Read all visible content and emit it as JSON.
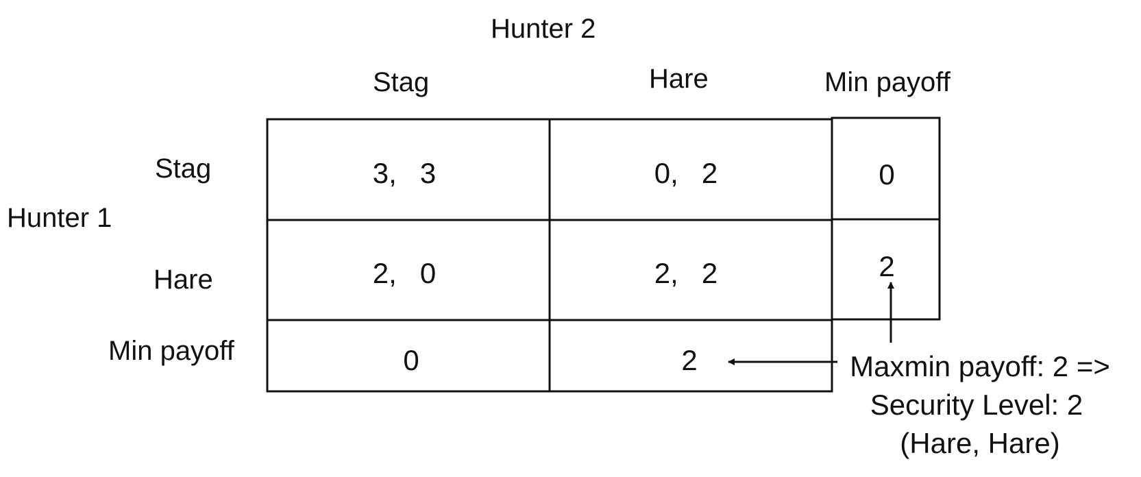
{
  "players": {
    "column_player": "Hunter 2",
    "row_player": "Hunter 1"
  },
  "columns": [
    "Stag",
    "Hare",
    "Min payoff"
  ],
  "rows": [
    "Stag",
    "Hare",
    "Min payoff"
  ],
  "payoffs": [
    [
      {
        "p1": "3,",
        "p2": "3"
      },
      {
        "p1": "0,",
        "p2": "2"
      }
    ],
    [
      {
        "p1": "2,",
        "p2": "0"
      },
      {
        "p1": "2,",
        "p2": "2"
      }
    ]
  ],
  "row_min_payoffs": [
    "0",
    "2"
  ],
  "column_min_payoffs": [
    "0",
    "2"
  ],
  "annotation": {
    "line1": "Maxmin payoff: 2 =>",
    "line2": "Security Level: 2",
    "line3": "(Hare, Hare)"
  }
}
